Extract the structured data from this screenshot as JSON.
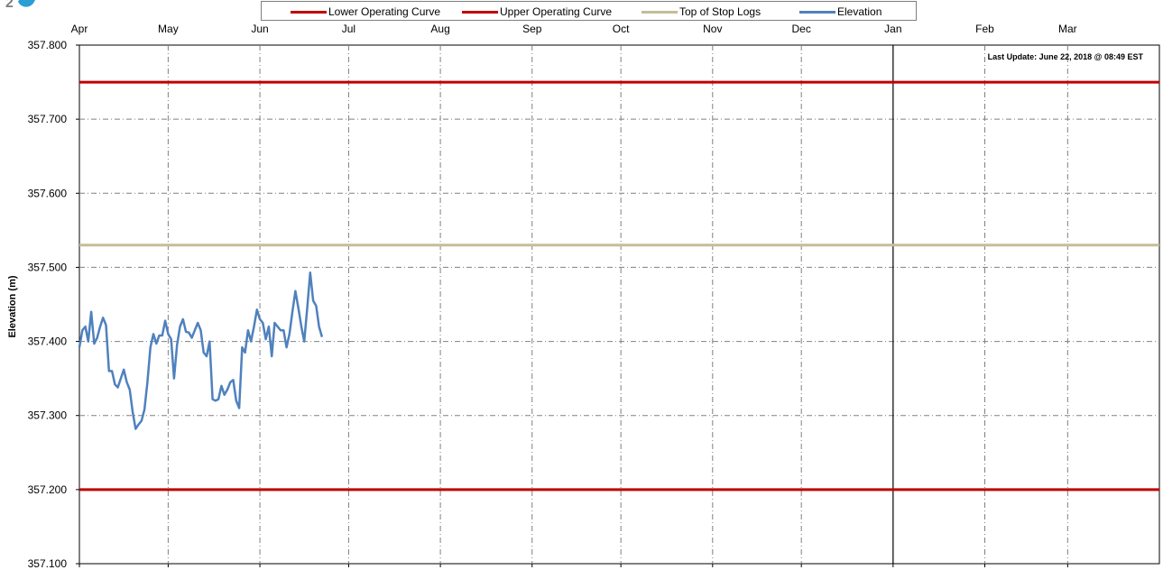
{
  "chart_data": {
    "type": "line",
    "ylabel": "Elevation (m)",
    "xlabel": "",
    "ylim": [
      357.1,
      357.8
    ],
    "y_ticks": [
      "357.100",
      "357.200",
      "357.300",
      "357.400",
      "357.500",
      "357.600",
      "357.700",
      "357.800"
    ],
    "x_tick_labels": [
      "Apr",
      "May",
      "Jun",
      "Jul",
      "Aug",
      "Sep",
      "Oct",
      "Nov",
      "Dec",
      "Jan",
      "Feb",
      "Mar"
    ],
    "x_domain_days": [
      0,
      365
    ],
    "grid": true,
    "legend_position": "top",
    "annotation": "Last Update:  June 22, 2018 @ 08:49 EST",
    "reference_line_month": "Jan",
    "series": [
      {
        "name": "Lower Operating Curve",
        "color": "#c00000",
        "constant": 357.2
      },
      {
        "name": "Upper Operating Curve",
        "color": "#c00000",
        "constant": 357.75
      },
      {
        "name": "Top of Stop Logs",
        "color": "#c4bd97",
        "constant": 357.53
      },
      {
        "name": "Elevation",
        "color": "#4f81bd",
        "day": [
          0,
          1,
          2,
          3,
          4,
          5,
          6,
          7,
          8,
          9,
          10,
          11,
          12,
          13,
          14,
          15,
          16,
          17,
          18,
          19,
          20,
          21,
          22,
          23,
          24,
          25,
          26,
          27,
          28,
          29,
          30,
          31,
          32,
          33,
          34,
          35,
          36,
          37,
          38,
          39,
          40,
          41,
          42,
          43,
          44,
          45,
          46,
          47,
          48,
          49,
          50,
          51,
          52,
          53,
          54,
          55,
          56,
          57,
          58,
          59,
          60,
          61,
          62,
          63,
          64,
          65,
          66,
          67,
          68,
          69,
          70,
          71,
          72,
          73,
          74,
          75,
          76,
          77,
          78,
          79,
          80,
          81,
          82
        ],
        "values": [
          357.392,
          357.415,
          357.42,
          357.4,
          357.44,
          357.397,
          357.405,
          357.42,
          357.432,
          357.422,
          357.36,
          357.36,
          357.342,
          357.338,
          357.35,
          357.362,
          357.345,
          357.335,
          357.305,
          357.282,
          357.288,
          357.293,
          357.308,
          357.345,
          357.392,
          357.41,
          357.397,
          357.408,
          357.408,
          357.428,
          357.41,
          357.403,
          357.35,
          357.395,
          357.42,
          357.43,
          357.413,
          357.412,
          357.405,
          357.415,
          357.425,
          357.415,
          357.385,
          357.38,
          357.4,
          357.322,
          357.32,
          357.322,
          357.34,
          357.328,
          357.335,
          357.345,
          357.348,
          357.32,
          357.31,
          357.392,
          357.385,
          357.415,
          357.4,
          357.42,
          357.443,
          357.43,
          357.425,
          357.403,
          357.42,
          357.38,
          357.425,
          357.42,
          357.415,
          357.415,
          357.392,
          357.41,
          357.44,
          357.468,
          357.445,
          357.42,
          357.4,
          357.445,
          357.493,
          357.455,
          357.448,
          357.42,
          357.406
        ]
      }
    ]
  }
}
